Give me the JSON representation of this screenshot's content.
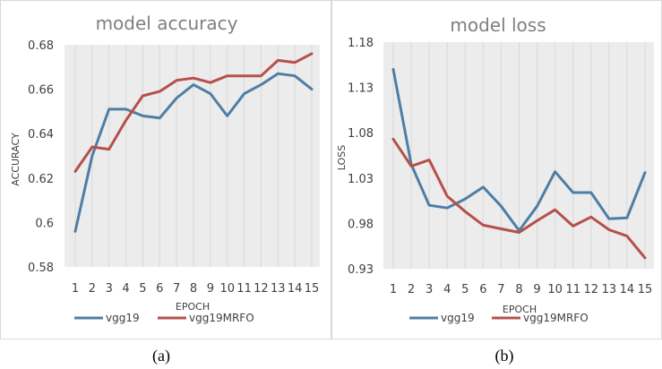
{
  "colors": {
    "vgg19": "#4f7ea4",
    "vgg19MRFO": "#b5504b",
    "plot_bg": "#ececec"
  },
  "chart_data": [
    {
      "type": "line",
      "title": "model accuracy",
      "xlabel": "EPOCH",
      "ylabel": "ACCURACY",
      "categories": [
        "1",
        "2",
        "3",
        "4",
        "5",
        "6",
        "7",
        "8",
        "9",
        "10",
        "11",
        "12",
        "13",
        "14",
        "15"
      ],
      "ylim": [
        0.58,
        0.68
      ],
      "yticks": [
        "0.58",
        "0.6",
        "0.62",
        "0.64",
        "0.66",
        "0.68"
      ],
      "grid": "vertical",
      "legend": "bottom",
      "caption": "(a)",
      "series": [
        {
          "name": "vgg19",
          "values": [
            0.596,
            0.63,
            0.651,
            0.651,
            0.648,
            0.647,
            0.656,
            0.662,
            0.658,
            0.648,
            0.658,
            0.662,
            0.667,
            0.666,
            0.66
          ]
        },
        {
          "name": "vgg19MRFO",
          "values": [
            0.623,
            0.634,
            0.633,
            0.646,
            0.657,
            0.659,
            0.664,
            0.665,
            0.663,
            0.666,
            0.666,
            0.666,
            0.673,
            0.672,
            0.676
          ]
        }
      ]
    },
    {
      "type": "line",
      "title": "model loss",
      "xlabel": "EPOCH",
      "ylabel": "LOSS",
      "categories": [
        "1",
        "2",
        "3",
        "4",
        "5",
        "6",
        "7",
        "8",
        "9",
        "10",
        "11",
        "12",
        "13",
        "14",
        "15"
      ],
      "ylim": [
        0.93,
        1.18
      ],
      "yticks": [
        "0.93",
        "0.98",
        "1.03",
        "1.08",
        "1.13",
        "1.18"
      ],
      "grid": "vertical",
      "legend": "bottom",
      "caption": "(b)",
      "series": [
        {
          "name": "vgg19",
          "values": [
            1.15,
            1.045,
            1.0,
            0.997,
            1.007,
            1.02,
            0.999,
            0.972,
            0.999,
            1.037,
            1.014,
            1.014,
            0.985,
            0.986,
            1.036
          ]
        },
        {
          "name": "vgg19MRFO",
          "values": [
            1.073,
            1.043,
            1.05,
            1.01,
            0.993,
            0.978,
            0.974,
            0.97,
            0.983,
            0.995,
            0.977,
            0.987,
            0.973,
            0.966,
            0.942
          ]
        }
      ]
    }
  ]
}
